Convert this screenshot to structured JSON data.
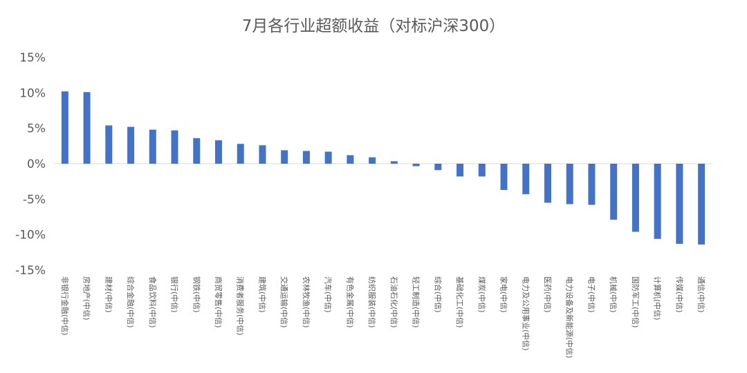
{
  "chart_data": {
    "type": "bar",
    "title": "7月各行业超额收益（对标沪深300）",
    "xlabel": "",
    "ylabel": "",
    "ylim": [
      -15,
      15
    ],
    "yticks": [
      "15%",
      "10%",
      "5%",
      "0%",
      "-5%",
      "-10%",
      "-15%"
    ],
    "ytick_values": [
      15,
      10,
      5,
      0,
      -5,
      -10,
      -15
    ],
    "grid": false,
    "legend": "none",
    "bar_color": "#4472C4",
    "categories": [
      "非银行金融(中信)",
      "房地产(中信)",
      "建材(中信)",
      "综合金融(中信)",
      "食品饮料(中信)",
      "银行(中信)",
      "钢铁(中信)",
      "商贸零售(中信)",
      "消费者服务(中信)",
      "建筑(中信)",
      "交通运输(中信)",
      "农林牧渔(中信)",
      "汽车(中信)",
      "有色金属(中信)",
      "纺织服装(中信)",
      "石油石化(中信)",
      "轻工制造(中信)",
      "综合(中信)",
      "基础化工(中信)",
      "煤炭(中信)",
      "家电(中信)",
      "电力及公用事业(中信)",
      "医药(中信)",
      "电力设备及新能源(中信)",
      "电子(中信)",
      "机械(中信)",
      "国防军工(中信)",
      "计算机(中信)",
      "传媒(中信)",
      "通信(中信)"
    ],
    "values": [
      10.2,
      10.1,
      5.4,
      5.2,
      4.8,
      4.7,
      3.6,
      3.3,
      2.8,
      2.6,
      1.9,
      1.8,
      1.7,
      1.2,
      0.9,
      0.35,
      -0.35,
      -0.9,
      -1.8,
      -1.8,
      -3.7,
      -4.3,
      -5.5,
      -5.7,
      -5.8,
      -7.9,
      -9.6,
      -10.6,
      -11.3,
      -11.4
    ]
  }
}
